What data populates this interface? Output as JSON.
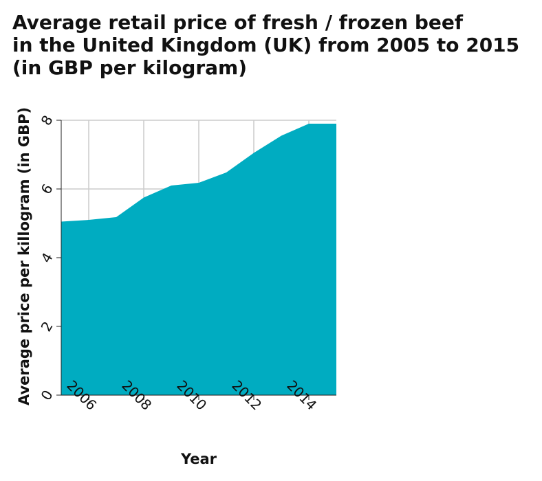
{
  "chart_data": {
    "type": "area",
    "title_lines": [
      "Average retail price of fresh / frozen beef",
      "in the United Kingdom (UK) from 2005 to 2015",
      "(in GBP per kilogram)"
    ],
    "xlabel": "Year",
    "ylabel": "Average price per killogram (in GBP)",
    "x": [
      2005,
      2006,
      2007,
      2008,
      2009,
      2010,
      2011,
      2012,
      2013,
      2014,
      2015
    ],
    "series": [
      {
        "values": [
          5.05,
          5.1,
          5.18,
          5.75,
          6.1,
          6.18,
          6.48,
          7.05,
          7.55,
          7.9,
          7.9
        ]
      }
    ],
    "xlim": [
      2005,
      2015
    ],
    "ylim": [
      0,
      8
    ],
    "xticks": [
      2006,
      2008,
      2010,
      2012,
      2014
    ],
    "yticks": [
      0,
      2,
      4,
      6,
      8
    ],
    "grid": true,
    "fill_color": "#00acc1",
    "grid_color": "#cccccc"
  }
}
